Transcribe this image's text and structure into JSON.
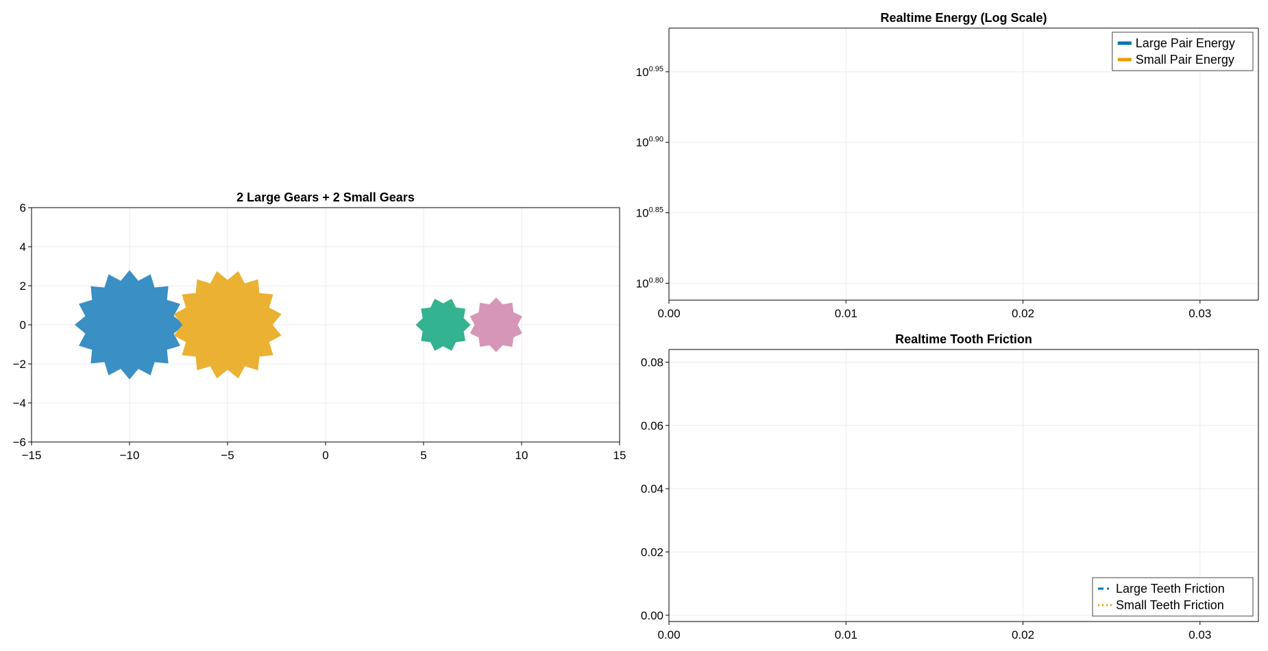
{
  "chart_data": [
    {
      "type": "scatter",
      "title": "2 Large Gears + 2 Small Gears",
      "xlabel": "",
      "ylabel": "",
      "xlim": [
        -15,
        15
      ],
      "ylim": [
        -6,
        6
      ],
      "x_ticks": [
        "−15",
        "−10",
        "−5",
        "0",
        "5",
        "10",
        "15"
      ],
      "x_tick_values": [
        -15,
        -10,
        -5,
        0,
        5,
        10,
        15
      ],
      "y_ticks": [
        "−6",
        "−4",
        "−2",
        "0",
        "2",
        "4",
        "6"
      ],
      "y_tick_values": [
        -6,
        -4,
        -2,
        0,
        2,
        4,
        6
      ],
      "grid": true,
      "gears": [
        {
          "cx": -10,
          "cy": 0,
          "outer_r": 2.8,
          "inner_r": 2.3,
          "teeth": 16,
          "color": "#3a8fc5",
          "rotation": 0
        },
        {
          "cx": -5,
          "cy": 0,
          "outer_r": 2.8,
          "inner_r": 2.3,
          "teeth": 16,
          "color": "#ebb133",
          "rotation": 11.25
        },
        {
          "cx": 6,
          "cy": 0,
          "outer_r": 1.4,
          "inner_r": 1.1,
          "teeth": 10,
          "color": "#33b38f",
          "rotation": 0
        },
        {
          "cx": 8.7,
          "cy": 0,
          "outer_r": 1.4,
          "inner_r": 1.1,
          "teeth": 10,
          "color": "#d696b8",
          "rotation": 18
        }
      ]
    },
    {
      "type": "line",
      "title": "Realtime Energy (Log Scale)",
      "xlabel": "",
      "ylabel": "",
      "y_scale": "log10",
      "xlim": [
        0,
        0.0333
      ],
      "ylim": [
        0.788,
        0.981
      ],
      "x_ticks": [
        "0.00",
        "0.01",
        "0.02",
        "0.03"
      ],
      "x_tick_values": [
        0,
        0.01,
        0.02,
        0.03
      ],
      "y_ticks": [
        {
          "base": "10",
          "exp": "0.95"
        },
        {
          "base": "10",
          "exp": "0.90"
        },
        {
          "base": "10",
          "exp": "0.85"
        },
        {
          "base": "10",
          "exp": "0.80"
        }
      ],
      "y_tick_values": [
        0.95,
        0.9,
        0.85,
        0.8
      ],
      "grid": true,
      "legend_position": "top-right",
      "series": [
        {
          "name": "Large Pair Energy",
          "color": "#0a72b3",
          "style": "solid",
          "x": [],
          "y": []
        },
        {
          "name": "Small Pair Energy",
          "color": "#e69f00",
          "style": "solid",
          "x": [],
          "y": []
        }
      ]
    },
    {
      "type": "line",
      "title": "Realtime Tooth Friction",
      "xlabel": "",
      "ylabel": "",
      "xlim": [
        0,
        0.0333
      ],
      "ylim": [
        -0.002,
        0.084
      ],
      "x_ticks": [
        "0.00",
        "0.01",
        "0.02",
        "0.03"
      ],
      "x_tick_values": [
        0,
        0.01,
        0.02,
        0.03
      ],
      "y_ticks": [
        "0.08",
        "0.06",
        "0.04",
        "0.02",
        "0.00"
      ],
      "y_tick_values": [
        0.08,
        0.06,
        0.04,
        0.02,
        0.0
      ],
      "grid": true,
      "legend_position": "bottom-right",
      "series": [
        {
          "name": "Large Teeth Friction",
          "color": "#0a72b3",
          "style": "dashdot",
          "x": [],
          "y": []
        },
        {
          "name": "Small Teeth Friction",
          "color": "#e69f00",
          "style": "dotted",
          "x": [],
          "y": []
        }
      ]
    }
  ]
}
